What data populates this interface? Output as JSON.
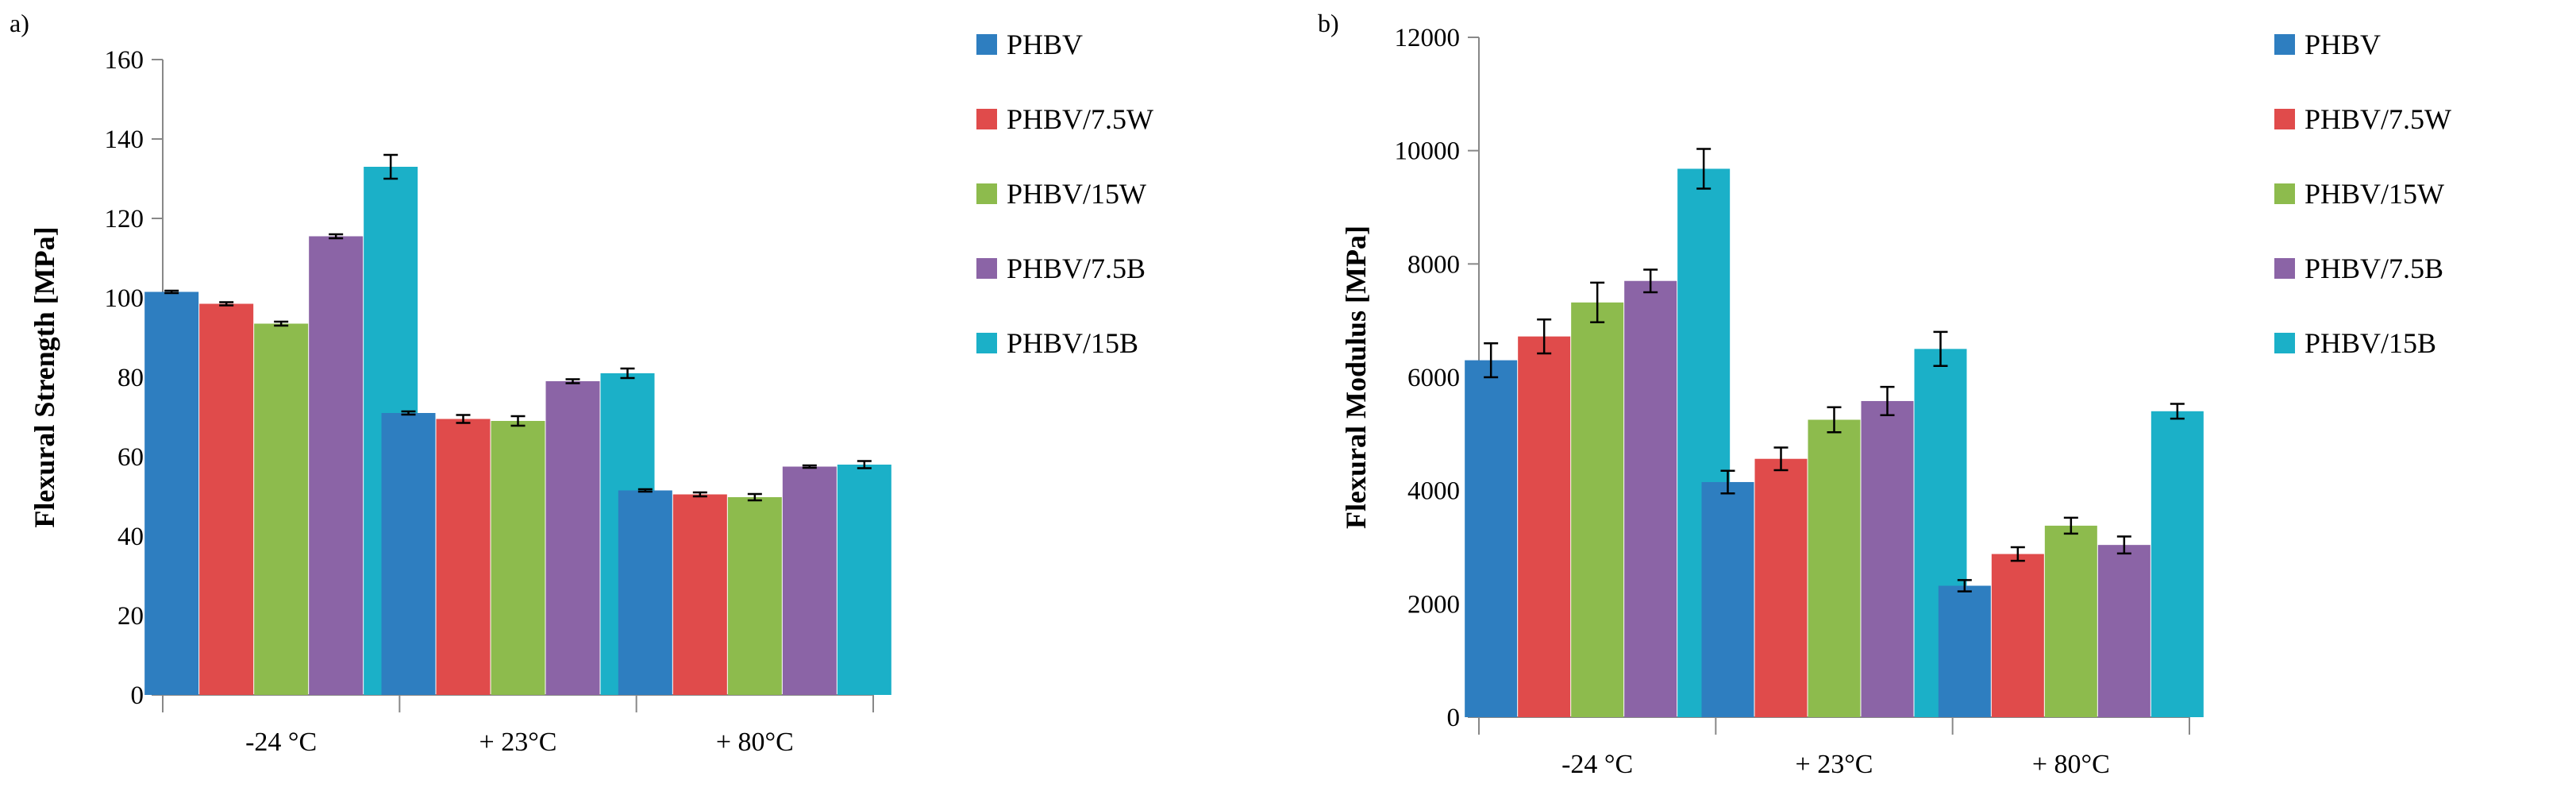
{
  "chart_data": [
    {
      "panel_label": "a)",
      "type": "bar",
      "title": "",
      "xlabel": "",
      "ylabel": "Flexural Strength [MPa]",
      "ylim": [
        0,
        160
      ],
      "yticks": [
        0,
        20,
        40,
        60,
        80,
        100,
        120,
        140,
        160
      ],
      "grid": false,
      "legend_position": "top-right",
      "categories": [
        "-24 °C",
        "+ 23°C",
        "+ 80°C"
      ],
      "series": [
        {
          "name": "PHBV",
          "color": "#2E7EC0",
          "values": [
            101.5,
            71,
            51.5
          ],
          "errors": [
            0.3,
            0.4,
            0.3
          ]
        },
        {
          "name": "PHBV/7.5W",
          "color": "#E04B4B",
          "values": [
            98.5,
            69.5,
            50.5
          ],
          "errors": [
            0.4,
            1.0,
            0.5
          ]
        },
        {
          "name": "PHBV/15W",
          "color": "#8DBB4D",
          "values": [
            93.5,
            69,
            49.8
          ],
          "errors": [
            0.5,
            1.2,
            0.8
          ]
        },
        {
          "name": "PHBV/7.5B",
          "color": "#8B64A6",
          "values": [
            115.5,
            79,
            57.5
          ],
          "errors": [
            0.5,
            0.5,
            0.3
          ]
        },
        {
          "name": "PHBV/15B",
          "color": "#1BB0C8",
          "values": [
            133,
            81,
            58
          ],
          "errors": [
            3,
            1.2,
            0.9
          ]
        }
      ]
    },
    {
      "panel_label": "b)",
      "type": "bar",
      "title": "",
      "xlabel": "",
      "ylabel": "Flexural Modulus [MPa]",
      "ylim": [
        0,
        12000
      ],
      "yticks": [
        0,
        2000,
        4000,
        6000,
        8000,
        10000,
        12000
      ],
      "grid": false,
      "legend_position": "top-right",
      "categories": [
        "-24 °C",
        "+ 23°C",
        "+ 80°C"
      ],
      "series": [
        {
          "name": "PHBV",
          "color": "#2E7EC0",
          "values": [
            6300,
            4150,
            2320
          ],
          "errors": [
            300,
            200,
            100
          ]
        },
        {
          "name": "PHBV/7.5W",
          "color": "#E04B4B",
          "values": [
            6720,
            4560,
            2880
          ],
          "errors": [
            300,
            200,
            120
          ]
        },
        {
          "name": "PHBV/15W",
          "color": "#8DBB4D",
          "values": [
            7320,
            5250,
            3380
          ],
          "errors": [
            350,
            220,
            140
          ]
        },
        {
          "name": "PHBV/7.5B",
          "color": "#8B64A6",
          "values": [
            7700,
            5580,
            3040
          ],
          "errors": [
            200,
            250,
            150
          ]
        },
        {
          "name": "PHBV/15B",
          "color": "#1BB0C8",
          "values": [
            9680,
            6500,
            5400
          ],
          "errors": [
            350,
            300,
            130
          ]
        }
      ]
    }
  ]
}
